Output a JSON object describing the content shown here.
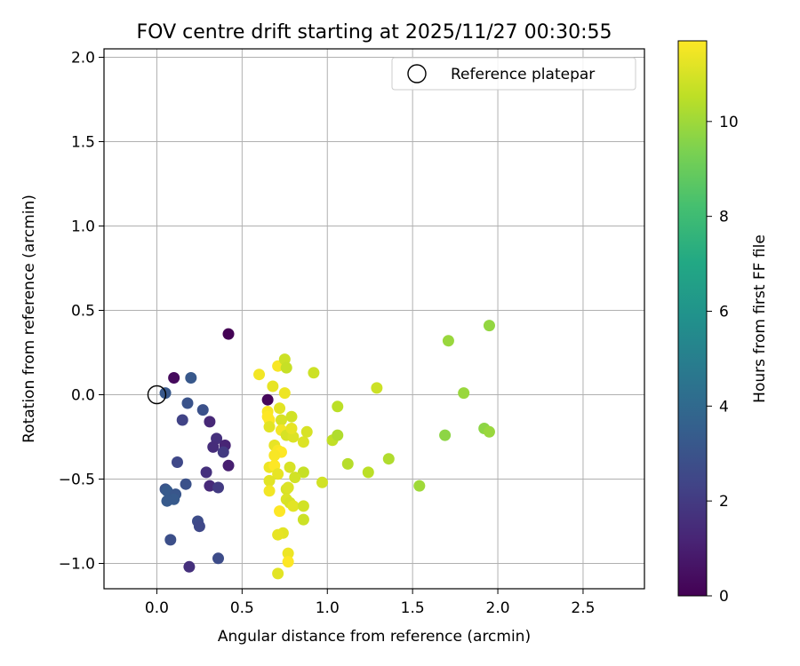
{
  "chart_data": {
    "type": "scatter",
    "title": "FOV centre drift starting at 2025/11/27 00:30:55",
    "xlabel": "Angular distance from reference (arcmin)",
    "ylabel": "Rotation from reference (arcmin)",
    "colorbar_label": "Hours from first FF file",
    "colormap": "viridis",
    "grid": true,
    "legend_position": "top-right",
    "xlim": [
      -0.31,
      2.86
    ],
    "ylim": [
      -1.15,
      2.05
    ],
    "clim": [
      0,
      11.7
    ],
    "x_ticks": [
      0.0,
      0.5,
      1.0,
      1.5,
      2.0,
      2.5
    ],
    "x_tick_labels": [
      "0.0",
      "0.5",
      "1.0",
      "1.5",
      "2.0",
      "2.5"
    ],
    "y_ticks": [
      -1.0,
      -0.5,
      0.0,
      0.5,
      1.0,
      1.5,
      2.0
    ],
    "y_tick_labels": [
      "−1.0",
      "−0.5",
      "0.0",
      "0.5",
      "1.0",
      "1.5",
      "2.0"
    ],
    "colorbar_ticks": [
      0,
      2,
      4,
      6,
      8,
      10
    ],
    "colorbar_tick_labels": [
      "0",
      "2",
      "4",
      "6",
      "8",
      "10"
    ],
    "reference": {
      "label": "Reference platepar",
      "x": 0.0,
      "y": 0.0
    },
    "points": [
      {
        "x": 0.42,
        "y": 0.36,
        "c": 0.05
      },
      {
        "x": 0.1,
        "y": 0.1,
        "c": 0.3
      },
      {
        "x": 0.2,
        "y": 0.1,
        "c": 3.2
      },
      {
        "x": 0.05,
        "y": 0.01,
        "c": 3.2
      },
      {
        "x": 0.18,
        "y": -0.05,
        "c": 3.0
      },
      {
        "x": 0.27,
        "y": -0.09,
        "c": 2.9
      },
      {
        "x": 0.15,
        "y": -0.15,
        "c": 2.3
      },
      {
        "x": 0.31,
        "y": -0.16,
        "c": 1.3
      },
      {
        "x": 0.35,
        "y": -0.26,
        "c": 1.6
      },
      {
        "x": 0.4,
        "y": -0.3,
        "c": 1.2
      },
      {
        "x": 0.33,
        "y": -0.31,
        "c": 1.5
      },
      {
        "x": 0.39,
        "y": -0.34,
        "c": 2.0
      },
      {
        "x": 0.42,
        "y": -0.42,
        "c": 1.0
      },
      {
        "x": 0.12,
        "y": -0.4,
        "c": 2.5
      },
      {
        "x": 0.29,
        "y": -0.46,
        "c": 1.6
      },
      {
        "x": 0.17,
        "y": -0.53,
        "c": 2.9
      },
      {
        "x": 0.31,
        "y": -0.54,
        "c": 1.4
      },
      {
        "x": 0.36,
        "y": -0.55,
        "c": 2.0
      },
      {
        "x": 0.05,
        "y": -0.56,
        "c": 3.0
      },
      {
        "x": 0.06,
        "y": -0.57,
        "c": 3.3
      },
      {
        "x": 0.11,
        "y": -0.59,
        "c": 3.1
      },
      {
        "x": 0.1,
        "y": -0.62,
        "c": 3.3
      },
      {
        "x": 0.06,
        "y": -0.63,
        "c": 3.3
      },
      {
        "x": 0.24,
        "y": -0.75,
        "c": 2.7
      },
      {
        "x": 0.25,
        "y": -0.78,
        "c": 2.5
      },
      {
        "x": 0.08,
        "y": -0.86,
        "c": 2.8
      },
      {
        "x": 0.36,
        "y": -0.97,
        "c": 2.7
      },
      {
        "x": 0.19,
        "y": -1.02,
        "c": 1.6
      },
      {
        "x": 0.65,
        "y": -0.03,
        "c": 0.2
      },
      {
        "x": 0.6,
        "y": 0.12,
        "c": 11.5
      },
      {
        "x": 0.71,
        "y": 0.17,
        "c": 11.6
      },
      {
        "x": 0.75,
        "y": 0.21,
        "c": 10.8
      },
      {
        "x": 0.76,
        "y": 0.16,
        "c": 10.7
      },
      {
        "x": 0.68,
        "y": 0.05,
        "c": 11.3
      },
      {
        "x": 0.75,
        "y": 0.01,
        "c": 11.4
      },
      {
        "x": 0.72,
        "y": -0.08,
        "c": 11.2
      },
      {
        "x": 0.65,
        "y": -0.1,
        "c": 11.6
      },
      {
        "x": 0.65,
        "y": -0.13,
        "c": 11.7
      },
      {
        "x": 0.66,
        "y": -0.15,
        "c": 11.7
      },
      {
        "x": 0.73,
        "y": -0.15,
        "c": 11.0
      },
      {
        "x": 0.79,
        "y": -0.13,
        "c": 10.9
      },
      {
        "x": 0.66,
        "y": -0.19,
        "c": 11.2
      },
      {
        "x": 0.73,
        "y": -0.21,
        "c": 11.5
      },
      {
        "x": 0.76,
        "y": -0.24,
        "c": 11.0
      },
      {
        "x": 0.8,
        "y": -0.25,
        "c": 11.1
      },
      {
        "x": 0.79,
        "y": -0.2,
        "c": 11.3
      },
      {
        "x": 0.86,
        "y": -0.28,
        "c": 11.1
      },
      {
        "x": 0.88,
        "y": -0.22,
        "c": 11.0
      },
      {
        "x": 0.69,
        "y": -0.3,
        "c": 11.3
      },
      {
        "x": 0.71,
        "y": -0.33,
        "c": 11.6
      },
      {
        "x": 0.73,
        "y": -0.34,
        "c": 11.7
      },
      {
        "x": 0.69,
        "y": -0.36,
        "c": 11.6
      },
      {
        "x": 0.66,
        "y": -0.43,
        "c": 11.4
      },
      {
        "x": 0.69,
        "y": -0.42,
        "c": 11.7
      },
      {
        "x": 0.71,
        "y": -0.47,
        "c": 11.3
      },
      {
        "x": 0.78,
        "y": -0.43,
        "c": 11.0
      },
      {
        "x": 0.86,
        "y": -0.46,
        "c": 10.7
      },
      {
        "x": 0.81,
        "y": -0.49,
        "c": 10.9
      },
      {
        "x": 0.66,
        "y": -0.51,
        "c": 11.2
      },
      {
        "x": 0.66,
        "y": -0.57,
        "c": 11.5
      },
      {
        "x": 0.76,
        "y": -0.56,
        "c": 11.0
      },
      {
        "x": 0.77,
        "y": -0.55,
        "c": 11.1
      },
      {
        "x": 0.76,
        "y": -0.62,
        "c": 11.1
      },
      {
        "x": 0.78,
        "y": -0.64,
        "c": 11.0
      },
      {
        "x": 0.8,
        "y": -0.66,
        "c": 11.2
      },
      {
        "x": 0.72,
        "y": -0.69,
        "c": 11.7
      },
      {
        "x": 0.86,
        "y": -0.66,
        "c": 10.9
      },
      {
        "x": 0.86,
        "y": -0.74,
        "c": 10.8
      },
      {
        "x": 0.74,
        "y": -0.82,
        "c": 11.2
      },
      {
        "x": 0.71,
        "y": -0.83,
        "c": 11.3
      },
      {
        "x": 0.77,
        "y": -0.94,
        "c": 11.4
      },
      {
        "x": 0.77,
        "y": -0.99,
        "c": 11.7
      },
      {
        "x": 0.71,
        "y": -1.06,
        "c": 11.2
      },
      {
        "x": 0.92,
        "y": 0.13,
        "c": 10.8
      },
      {
        "x": 0.97,
        "y": -0.52,
        "c": 10.9
      },
      {
        "x": 1.03,
        "y": -0.27,
        "c": 10.6
      },
      {
        "x": 1.06,
        "y": -0.24,
        "c": 10.3
      },
      {
        "x": 1.06,
        "y": -0.07,
        "c": 10.5
      },
      {
        "x": 1.12,
        "y": -0.41,
        "c": 10.4
      },
      {
        "x": 1.24,
        "y": -0.46,
        "c": 10.5
      },
      {
        "x": 1.29,
        "y": 0.04,
        "c": 10.8
      },
      {
        "x": 1.36,
        "y": -0.38,
        "c": 10.3
      },
      {
        "x": 1.54,
        "y": -0.54,
        "c": 10.0
      },
      {
        "x": 1.69,
        "y": -0.24,
        "c": 9.7
      },
      {
        "x": 1.71,
        "y": 0.32,
        "c": 9.9
      },
      {
        "x": 1.8,
        "y": 0.01,
        "c": 9.9
      },
      {
        "x": 1.92,
        "y": -0.2,
        "c": 9.7
      },
      {
        "x": 1.95,
        "y": -0.22,
        "c": 9.9
      },
      {
        "x": 1.95,
        "y": 0.41,
        "c": 9.8
      }
    ]
  }
}
